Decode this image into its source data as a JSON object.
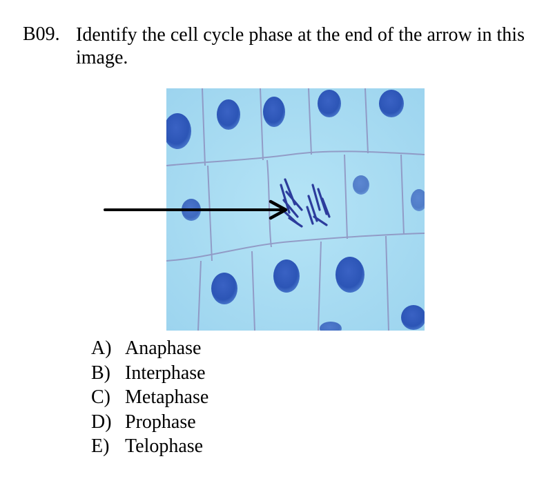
{
  "question": {
    "number": "B09.",
    "text": "Identify the cell cycle phase at the end of the arrow in this image."
  },
  "image": {
    "icon": "root-tip-micrograph",
    "background_color": "#a6dcf2",
    "nucleus_color": "#2b55b8",
    "cell_wall_color": "#8a86b8",
    "chromosome_color": "#2c3c9c"
  },
  "arrow": {
    "icon": "arrow-right-icon",
    "color": "#000000"
  },
  "choices": [
    {
      "letter": "A)",
      "label": "Anaphase"
    },
    {
      "letter": "B)",
      "label": "Interphase"
    },
    {
      "letter": "C)",
      "label": "Metaphase"
    },
    {
      "letter": "D)",
      "label": "Prophase"
    },
    {
      "letter": "E)",
      "label": "Telophase"
    }
  ]
}
